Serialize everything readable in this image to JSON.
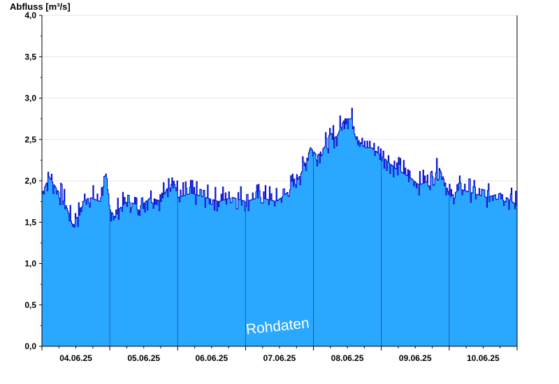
{
  "chart_data": {
    "type": "area",
    "title": "",
    "ylabel": "Abfluss [m³/s]",
    "xlabel": "",
    "watermark": "Rohdaten",
    "ylim": [
      0,
      4.0
    ],
    "xlim": [
      0,
      7
    ],
    "yticks": [
      "0,0",
      "0,5",
      "1,0",
      "1,5",
      "2,0",
      "2,5",
      "3,0",
      "3,5",
      "4,0"
    ],
    "x_tick_labels": [
      "04.06.25",
      "05.06.25",
      "06.06.25",
      "07.06.25",
      "08.06.25",
      "09.06.25",
      "10.06.25"
    ],
    "grid": true,
    "fill_color": "#2aa8ff",
    "line_color": "#0000cc",
    "grid_color": "#e6e6e6",
    "noise_amplitude": 0.1,
    "x_unit": "days since 04.06.25 00:00",
    "series": [
      {
        "x": [
          0,
          0.1,
          0.25,
          0.35,
          0.45,
          0.5,
          0.57,
          0.6,
          0.7,
          0.85,
          0.92,
          1.0,
          1.08,
          1.12,
          1.25,
          1.45,
          1.6,
          1.75,
          1.92,
          2.0,
          2.2,
          2.4,
          2.6,
          2.8,
          3.0,
          3.2,
          3.45,
          3.6,
          3.72,
          3.85,
          3.95,
          4.05,
          4.2,
          4.35,
          4.45,
          4.55,
          4.65,
          4.75,
          4.85,
          5.0,
          5.2,
          5.4,
          5.55,
          5.7,
          5.85,
          5.95,
          6.0,
          6.15,
          6.35,
          6.55,
          6.75,
          7.0
        ],
        "y": [
          1.85,
          2.05,
          1.85,
          1.7,
          1.45,
          1.55,
          1.6,
          1.75,
          1.8,
          1.75,
          2.0,
          1.65,
          1.55,
          1.65,
          1.75,
          1.7,
          1.8,
          1.75,
          2.05,
          1.8,
          1.85,
          1.8,
          1.75,
          1.8,
          1.75,
          1.8,
          1.75,
          1.85,
          1.95,
          2.15,
          2.4,
          2.3,
          2.45,
          2.55,
          2.75,
          2.75,
          2.5,
          2.4,
          2.4,
          2.3,
          2.15,
          2.05,
          1.95,
          2.0,
          2.15,
          1.95,
          1.8,
          1.9,
          1.85,
          1.8,
          1.85,
          1.7
        ]
      }
    ]
  }
}
